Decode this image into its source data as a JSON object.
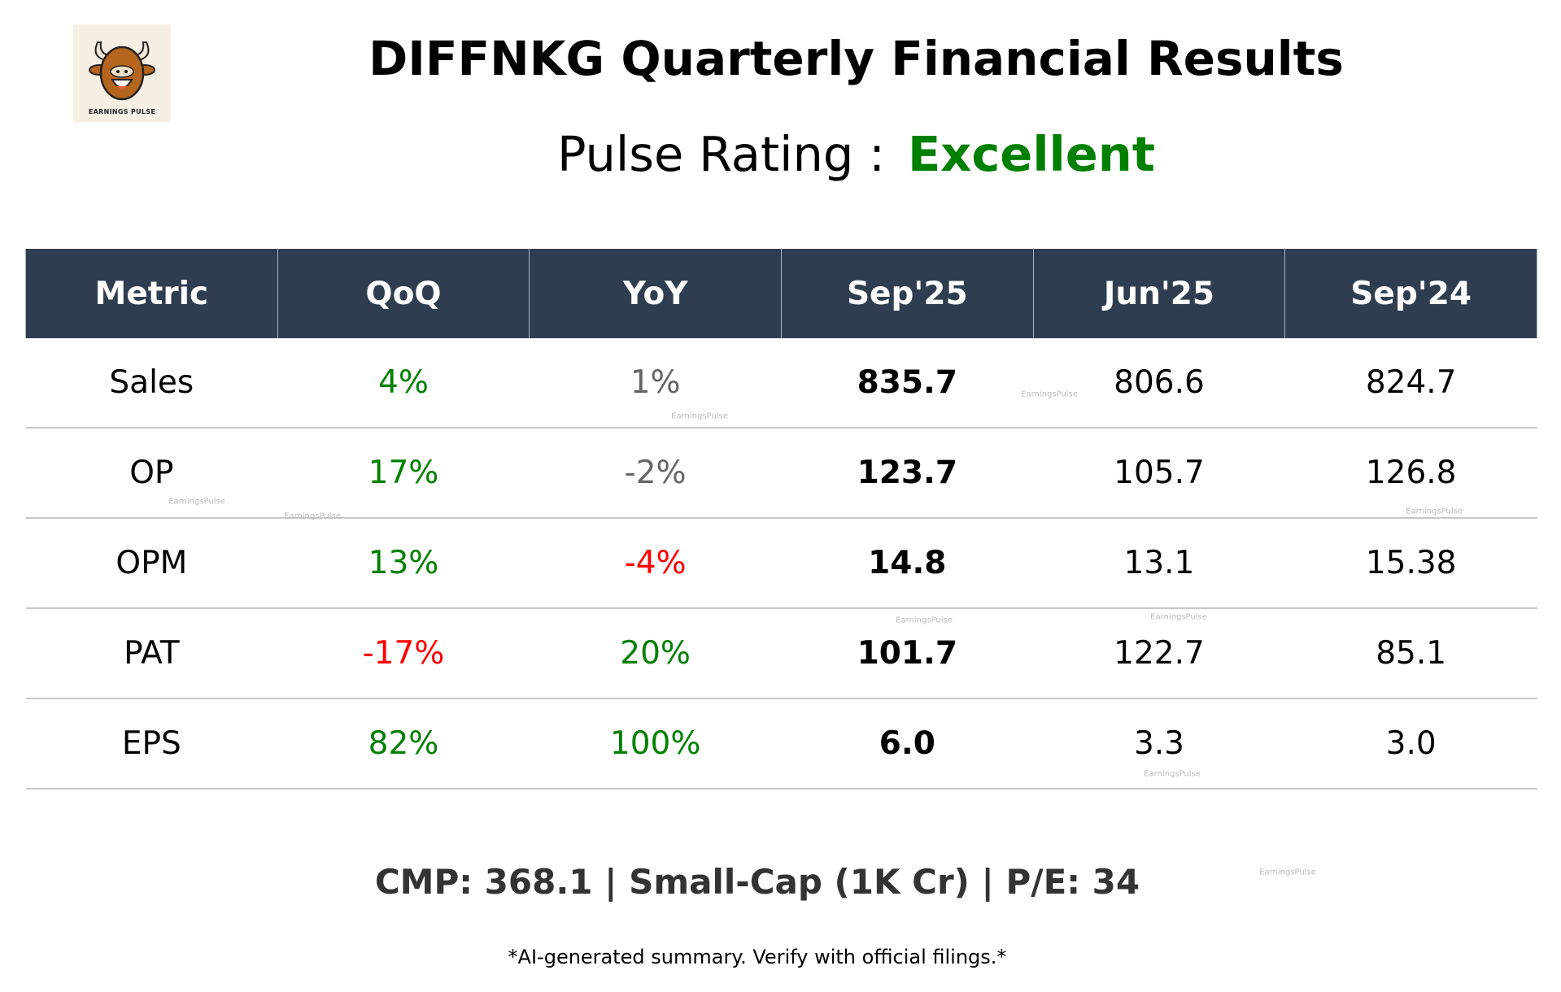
{
  "logo": {
    "text": "EARNINGS PULSE",
    "icon": "bull-icon"
  },
  "header": {
    "title": "DIFFNKG Quarterly Financial Results",
    "rating_label": "Pulse Rating :",
    "rating_value": "Excellent",
    "rating_color": "#008000"
  },
  "table": {
    "columns": [
      "Metric",
      "QoQ",
      "YoY",
      "Sep'25",
      "Jun'25",
      "Sep'24"
    ],
    "header_bg": "#2e3e50",
    "rows": [
      {
        "metric": "Sales",
        "qoq": "4%",
        "qoq_color": "#008000",
        "yoy": "1%",
        "yoy_color": "#666666",
        "sep25": "835.7",
        "jun25": "806.6",
        "sep24": "824.7"
      },
      {
        "metric": "OP",
        "qoq": "17%",
        "qoq_color": "#008000",
        "yoy": "-2%",
        "yoy_color": "#666666",
        "sep25": "123.7",
        "jun25": "105.7",
        "sep24": "126.8"
      },
      {
        "metric": "OPM",
        "qoq": "13%",
        "qoq_color": "#008000",
        "yoy": "-4%",
        "yoy_color": "#ff0000",
        "sep25": "14.8",
        "jun25": "13.1",
        "sep24": "15.38"
      },
      {
        "metric": "PAT",
        "qoq": "-17%",
        "qoq_color": "#ff0000",
        "yoy": "20%",
        "yoy_color": "#008000",
        "sep25": "101.7",
        "jun25": "122.7",
        "sep24": "85.1"
      },
      {
        "metric": "EPS",
        "qoq": "82%",
        "qoq_color": "#008000",
        "yoy": "100%",
        "yoy_color": "#008000",
        "sep25": "6.0",
        "jun25": "3.3",
        "sep24": "3.0"
      }
    ]
  },
  "footer": {
    "summary": "CMP: 368.1 | Small-Cap (1K Cr) | P/E: 34",
    "disclaimer": "*AI-generated summary. Verify with official filings.*"
  },
  "watermark": "EarningsPulse"
}
